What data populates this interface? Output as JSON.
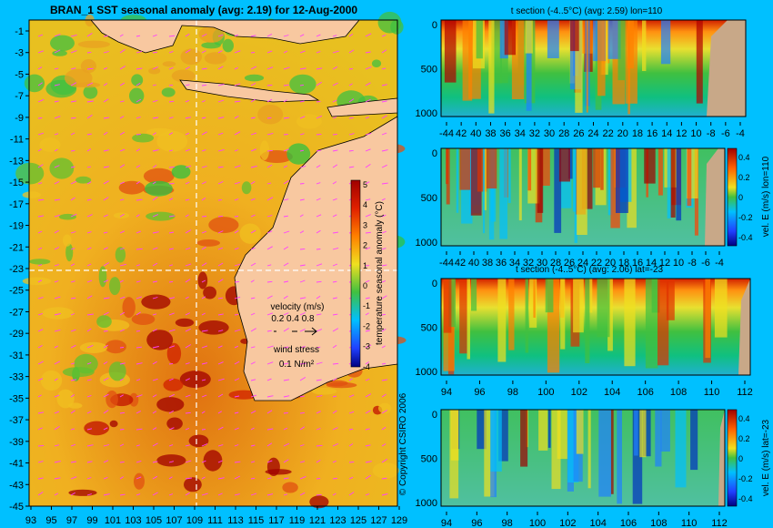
{
  "colors": {
    "background": "#00c0ff",
    "land": "#f8c8a0",
    "section_land": "#c8a888",
    "ocean_warm": "#e8a020",
    "ocean_hot": "#a00000",
    "ocean_cool": "#30c040",
    "vector": "#ff40ff"
  },
  "map": {
    "title": "BRAN_1 SST seasonal anomaly (avg: 2.19) for 12-Aug-2000",
    "lon_ticks": [
      "93",
      "95",
      "97",
      "99",
      "101",
      "103",
      "105",
      "107",
      "109",
      "111",
      "113",
      "115",
      "117",
      "119",
      "121",
      "123",
      "125",
      "127",
      "129"
    ],
    "lat_ticks": [
      "-1",
      "-3",
      "-5",
      "-7",
      "-9",
      "-11",
      "-13",
      "-15",
      "-17",
      "-19",
      "-21",
      "-23",
      "-25",
      "-27",
      "-29",
      "-31",
      "-33",
      "-35",
      "-37",
      "-39",
      "-41",
      "-43",
      "-45"
    ],
    "colorbar": {
      "label": "temperature seasonal anomaly (°C)",
      "ticks": [
        "5",
        "4",
        "3",
        "2",
        "1",
        "0",
        "-1",
        "-2",
        "-3",
        "-4"
      ]
    },
    "legend": {
      "velocity_title": "velocity (m/s)",
      "velocity_scale": "0.2 0.4 0.8",
      "wind_title": "wind stress",
      "wind_scale": "0.1 N/m²"
    },
    "copyright": "© Copyright CSIRO 2006"
  },
  "chart_data": [
    {
      "type": "heatmap",
      "title": "BRAN_1 SST seasonal anomaly (avg: 2.19) for 12-Aug-2000",
      "xlim": [
        93,
        130
      ],
      "ylim": [
        -45,
        0
      ],
      "clim": [
        -4,
        5
      ],
      "xlabel": "",
      "ylabel": ""
    },
    {
      "type": "heatmap",
      "title": "t section (-4..5°C) (avg: 2.59) lon=110",
      "x_ticks": [
        "-44",
        "42",
        "40",
        "38",
        "36",
        "34",
        "32",
        "30",
        "28",
        "26",
        "24",
        "22",
        "20",
        "18",
        "16",
        "14",
        "12",
        "10",
        "-8",
        "-6",
        "-4"
      ],
      "y_ticks": [
        "0",
        "500",
        "1000"
      ],
      "xlim": [
        -45,
        -3
      ],
      "ylim": [
        1050,
        0
      ]
    },
    {
      "type": "heatmap",
      "title": "",
      "x_ticks": [
        "-44",
        "42",
        "40",
        "38",
        "36",
        "34",
        "32",
        "30",
        "28",
        "26",
        "24",
        "22",
        "20",
        "18",
        "16",
        "14",
        "12",
        "10",
        "-8",
        "-6",
        "-4"
      ],
      "y_ticks": [
        "0",
        "500",
        "1000"
      ],
      "colorbar_label": "vel. E (m/s) lon=110",
      "colorbar_ticks": [
        "0.4",
        "0.2",
        "0",
        "-0.2",
        "-0.4"
      ],
      "clim": [
        -0.4,
        0.4
      ]
    },
    {
      "type": "heatmap",
      "title": "t section (-4..5°C) (avg: 2.06) lat=-23",
      "x_ticks": [
        "94",
        "96",
        "98",
        "100",
        "102",
        "104",
        "106",
        "108",
        "110",
        "112"
      ],
      "y_ticks": [
        "0",
        "500",
        "1000"
      ],
      "xlim": [
        93,
        114
      ]
    },
    {
      "type": "heatmap",
      "title": "",
      "x_ticks": [
        "94",
        "96",
        "98",
        "100",
        "102",
        "104",
        "106",
        "108",
        "110",
        "112"
      ],
      "y_ticks": [
        "0",
        "500",
        "1000"
      ],
      "colorbar_label": "vel. E (m/s) lat=-23",
      "colorbar_ticks": [
        "0.4",
        "0.2",
        "0",
        "-0.2",
        "-0.4"
      ],
      "clim": [
        -0.4,
        0.4
      ]
    }
  ]
}
